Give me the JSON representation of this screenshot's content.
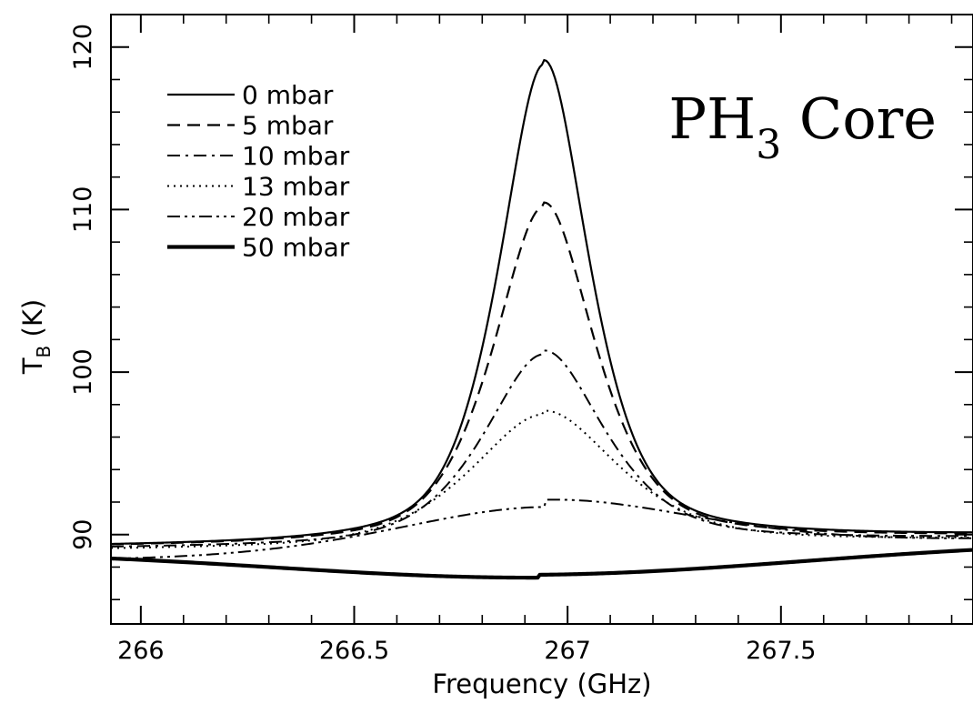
{
  "chart_data": {
    "type": "line",
    "xlabel": "Frequency (GHz)",
    "ylabel_main": "T",
    "ylabel_sub": "B",
    "ylabel_unit": " (K)",
    "xlim": [
      265.93,
      267.95
    ],
    "ylim": [
      84.5,
      122.0
    ],
    "xticks": [
      266,
      266.5,
      267,
      267.5
    ],
    "xtick_labels": [
      "266",
      "266.5",
      "267",
      "267.5"
    ],
    "yticks": [
      90,
      100,
      110,
      120
    ],
    "ytick_labels": [
      "90",
      "100",
      "110",
      "120"
    ],
    "x_minor_step": 0.1,
    "y_minor_step": 2,
    "grid": false,
    "legend_position": "top-left",
    "annotation_main": "PH",
    "annotation_sub": "3",
    "annotation_tail": " Core",
    "series": [
      {
        "name": "0 mbar",
        "dash": "solid",
        "width": 2.2,
        "baseline": 89.2,
        "slope": 0.35,
        "peak": 118.95,
        "center": 266.945,
        "width_ghz": 0.115,
        "lorentz": 0.6
      },
      {
        "name": "5 mbar",
        "dash": "dashed",
        "width": 2.2,
        "baseline": 89.2,
        "slope": 0.33,
        "peak": 110.2,
        "center": 266.945,
        "width_ghz": 0.13,
        "lorentz": 0.6
      },
      {
        "name": "10 mbar",
        "dash": "dashdot",
        "width": 2.0,
        "baseline": 89.1,
        "slope": 0.32,
        "peak": 101.1,
        "center": 266.945,
        "width_ghz": 0.155,
        "lorentz": 0.6
      },
      {
        "name": "13 mbar",
        "dash": "dotted",
        "width": 2.0,
        "baseline": 89.0,
        "slope": 0.32,
        "peak": 97.4,
        "center": 266.945,
        "width_ghz": 0.19,
        "lorentz": 0.6
      },
      {
        "name": "20 mbar",
        "dash": "dashdotdot",
        "width": 2.0,
        "baseline": 88.4,
        "slope": 0.62,
        "peak": 91.7,
        "center": 266.95,
        "width_ghz": 0.36,
        "lorentz": 0.2
      },
      {
        "name": "50 mbar",
        "dash": "solid",
        "width": 4.2,
        "baseline": 89.0,
        "slope": 0.25,
        "peak": 87.35,
        "center": 266.93,
        "width_ghz": 0.62,
        "lorentz": 0.0
      }
    ]
  }
}
